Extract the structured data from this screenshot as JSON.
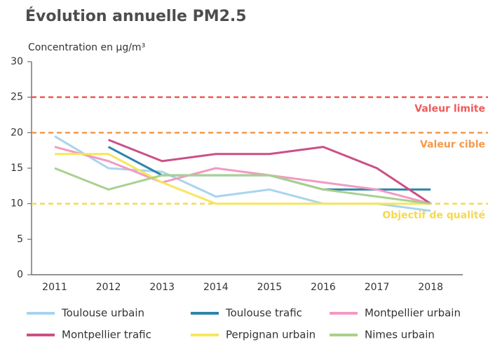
{
  "chart_data": {
    "type": "line",
    "title": "Évolution annuelle PM2.5",
    "y_label": "Concentration en µg/m³",
    "categories": [
      "2011",
      "2012",
      "2013",
      "2014",
      "2015",
      "2016",
      "2017",
      "2018"
    ],
    "ylim": [
      0,
      30
    ],
    "yticks": [
      0,
      5,
      10,
      15,
      20,
      25,
      30
    ],
    "reference_lines": [
      {
        "label": "Valeur limite",
        "value": 25,
        "color": "#ef5a5a"
      },
      {
        "label": "Valeur cible",
        "value": 20,
        "color": "#f29a4a"
      },
      {
        "label": "Objectif de qualité",
        "value": 10,
        "color": "#f7d94a"
      }
    ],
    "series": [
      {
        "name": "Toulouse urbain",
        "color": "#a8d4ee",
        "values": [
          19.5,
          15,
          14.5,
          11,
          12,
          10,
          10,
          9
        ]
      },
      {
        "name": "Toulouse trafic",
        "color": "#2f84a8",
        "values": [
          null,
          18,
          14,
          14,
          14,
          12,
          12,
          12
        ]
      },
      {
        "name": "Montpellier urbain",
        "color": "#f29ac2",
        "values": [
          18,
          16,
          13,
          15,
          14,
          13,
          12,
          10
        ]
      },
      {
        "name": "Montpellier trafic",
        "color": "#cc4f86",
        "values": [
          null,
          19,
          16,
          17,
          17,
          18,
          15,
          10
        ]
      },
      {
        "name": "Perpignan urbain",
        "color": "#f7e65a",
        "values": [
          17,
          17,
          13,
          10,
          10,
          10,
          10,
          10
        ]
      },
      {
        "name": "Nimes urbain",
        "color": "#a9d18e",
        "values": [
          15,
          12,
          14,
          14,
          14,
          12,
          11,
          10
        ]
      }
    ]
  }
}
